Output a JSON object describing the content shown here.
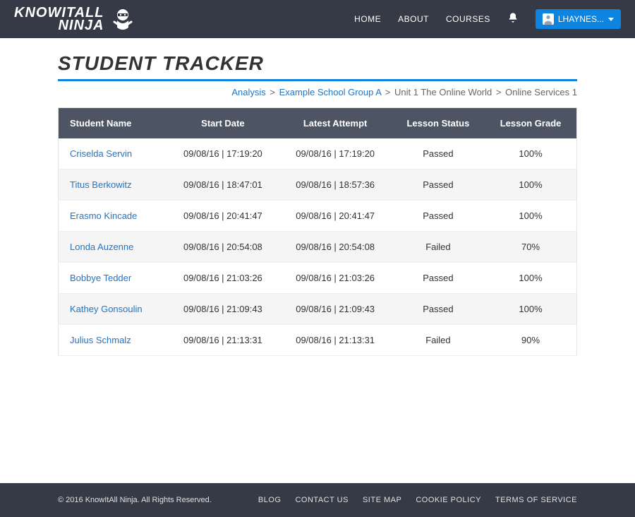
{
  "brand": {
    "line1": "KNOWITALL",
    "line2": "NINJA"
  },
  "nav": {
    "home": "HOME",
    "about": "ABOUT",
    "courses": "COURSES"
  },
  "user_button": "LHAYNES...",
  "page": {
    "title": "STUDENT TRACKER"
  },
  "breadcrumb": {
    "analysis": "Analysis",
    "group": "Example School Group A",
    "unit": "Unit 1 The Online World",
    "lesson": "Online Services 1"
  },
  "table": {
    "headers": {
      "name": "Student Name",
      "start": "Start Date",
      "latest": "Latest Attempt",
      "status": "Lesson Status",
      "grade": "Lesson Grade"
    },
    "rows": [
      {
        "name": "Criselda Servin",
        "start": "09/08/16 | 17:19:20",
        "latest": "09/08/16 | 17:19:20",
        "status": "Passed",
        "grade": "100%"
      },
      {
        "name": "Titus Berkowitz",
        "start": "09/08/16 | 18:47:01",
        "latest": "09/08/16 | 18:57:36",
        "status": "Passed",
        "grade": "100%"
      },
      {
        "name": "Erasmo Kincade",
        "start": "09/08/16 | 20:41:47",
        "latest": "09/08/16 | 20:41:47",
        "status": "Passed",
        "grade": "100%"
      },
      {
        "name": "Londa Auzenne",
        "start": "09/08/16 | 20:54:08",
        "latest": "09/08/16 | 20:54:08",
        "status": "Failed",
        "grade": "70%"
      },
      {
        "name": "Bobbye Tedder",
        "start": "09/08/16 | 21:03:26",
        "latest": "09/08/16 | 21:03:26",
        "status": "Passed",
        "grade": "100%"
      },
      {
        "name": "Kathey Gonsoulin",
        "start": "09/08/16 | 21:09:43",
        "latest": "09/08/16 | 21:09:43",
        "status": "Passed",
        "grade": "100%"
      },
      {
        "name": "Julius Schmalz",
        "start": "09/08/16 | 21:13:31",
        "latest": "09/08/16 | 21:13:31",
        "status": "Failed",
        "grade": "90%"
      }
    ]
  },
  "footer": {
    "copyright": "© 2016 KnowItAll Ninja. All Rights Reserved.",
    "links": {
      "blog": "BLOG",
      "contact": "CONTACT US",
      "sitemap": "SITE MAP",
      "cookie": "COOKIE POLICY",
      "terms": "TERMS OF SERVICE"
    }
  },
  "colors": {
    "header_bg": "#363a47",
    "accent": "#0d84e0",
    "link": "#2474c4",
    "th_bg": "#4d5463"
  }
}
